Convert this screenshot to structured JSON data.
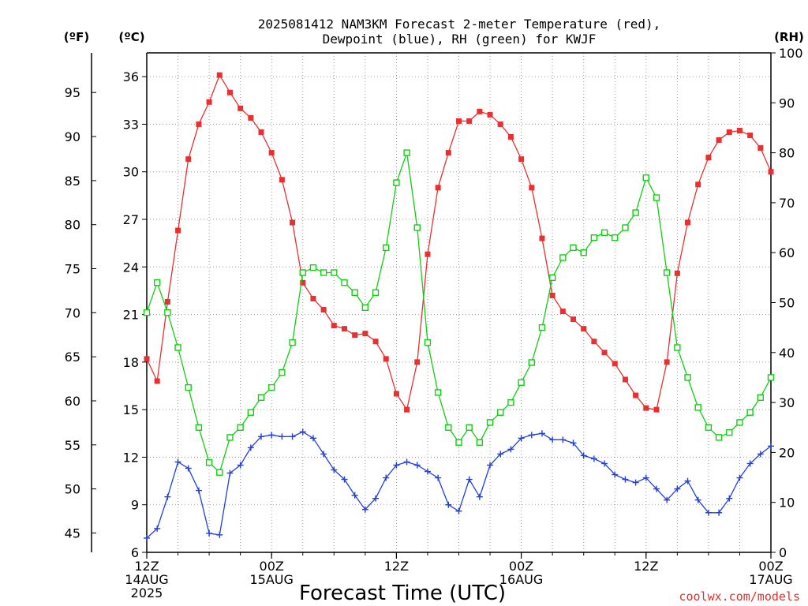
{
  "chart_data": {
    "type": "line",
    "title_line1": "2025081412 NAM3KM Forecast 2-meter Temperature (red),",
    "title_line2": "Dewpoint (blue), RH (green) for KWJF",
    "xlabel": "Forecast Time (UTC)",
    "left_unit_f": "(ºF)",
    "left_unit_c": "(ºC)",
    "right_unit": "(RH)",
    "credit": "coolwx.com/models",
    "xlim": [
      0,
      60
    ],
    "x_unit": "hours after 2025-08-14 12Z",
    "ylim_c": [
      6,
      37.5
    ],
    "ylim_rh": [
      0,
      100
    ],
    "yticks_c": [
      6,
      9,
      12,
      15,
      18,
      21,
      24,
      27,
      30,
      33,
      36
    ],
    "yticks_f": [
      45,
      50,
      55,
      60,
      65,
      70,
      75,
      80,
      85,
      90,
      95
    ],
    "yticks_rh": [
      0,
      10,
      20,
      30,
      40,
      50,
      60,
      70,
      80,
      90,
      100
    ],
    "x_ticks": [
      {
        "x": 0,
        "line1": "12Z",
        "line2": "14AUG",
        "line3": "2025"
      },
      {
        "x": 12,
        "line1": "00Z",
        "line2": "15AUG",
        "line3": ""
      },
      {
        "x": 24,
        "line1": "12Z",
        "line2": "",
        "line3": ""
      },
      {
        "x": 36,
        "line1": "00Z",
        "line2": "16AUG",
        "line3": ""
      },
      {
        "x": 48,
        "line1": "12Z",
        "line2": "",
        "line3": ""
      },
      {
        "x": 60,
        "line1": "00Z",
        "line2": "17AUG",
        "line3": ""
      }
    ],
    "grid": true,
    "series": [
      {
        "name": "Temperature",
        "units": "C",
        "color": "#e83030",
        "marker": "filled-square",
        "x": [
          0,
          1,
          2,
          3,
          4,
          5,
          6,
          7,
          8,
          9,
          10,
          11,
          12,
          13,
          14,
          15,
          16,
          17,
          18,
          19,
          20,
          21,
          22,
          23,
          24,
          25,
          26,
          27,
          28,
          29,
          30,
          31,
          32,
          33,
          34,
          35,
          36,
          37,
          38,
          39,
          40,
          41,
          42,
          43,
          44,
          45,
          46,
          47,
          48,
          49,
          50,
          51,
          52,
          53,
          54,
          55,
          56,
          57,
          58,
          59,
          60
        ],
        "values": [
          18.2,
          16.8,
          21.8,
          26.3,
          30.8,
          33.0,
          34.4,
          36.1,
          35.0,
          34.0,
          33.4,
          32.5,
          31.2,
          29.5,
          26.8,
          23.0,
          22.0,
          21.3,
          20.3,
          20.1,
          19.7,
          19.8,
          19.3,
          18.2,
          16.0,
          15.0,
          18.0,
          24.8,
          29.0,
          31.2,
          33.2,
          33.2,
          33.8,
          33.6,
          33.0,
          32.2,
          30.8,
          29.0,
          25.8,
          22.2,
          21.2,
          20.7,
          20.1,
          19.3,
          18.6,
          17.9,
          16.9,
          15.9,
          15.1,
          15.0,
          18.0,
          23.6,
          26.8,
          29.2,
          30.9,
          32.0,
          32.5,
          32.6,
          32.3,
          31.5,
          30.0
        ]
      },
      {
        "name": "Dewpoint",
        "units": "C",
        "color": "#2040e0",
        "marker": "plus",
        "x": [
          0,
          1,
          2,
          3,
          4,
          5,
          6,
          7,
          8,
          9,
          10,
          11,
          12,
          13,
          14,
          15,
          16,
          17,
          18,
          19,
          20,
          21,
          22,
          23,
          24,
          25,
          26,
          27,
          28,
          29,
          30,
          31,
          32,
          33,
          34,
          35,
          36,
          37,
          38,
          39,
          40,
          41,
          42,
          43,
          44,
          45,
          46,
          47,
          48,
          49,
          50,
          51,
          52,
          53,
          54,
          55,
          56,
          57,
          58,
          59,
          60
        ],
        "values": [
          6.9,
          7.5,
          9.5,
          11.7,
          11.3,
          9.9,
          7.2,
          7.1,
          11.0,
          11.5,
          12.6,
          13.3,
          13.4,
          13.3,
          13.3,
          13.6,
          13.2,
          12.2,
          11.2,
          10.6,
          9.6,
          8.7,
          9.4,
          10.7,
          11.5,
          11.7,
          11.5,
          11.1,
          10.7,
          9.0,
          8.6,
          10.6,
          9.5,
          11.5,
          12.2,
          12.5,
          13.2,
          13.4,
          13.5,
          13.1,
          13.1,
          12.9,
          12.1,
          11.9,
          11.6,
          10.9,
          10.6,
          10.4,
          10.7,
          10.0,
          9.3,
          10.0,
          10.5,
          9.3,
          8.5,
          8.5,
          9.4,
          10.7,
          11.6,
          12.2,
          12.7
        ]
      },
      {
        "name": "RH",
        "units": "%",
        "color": "#10d010",
        "marker": "open-square",
        "x": [
          0,
          1,
          2,
          3,
          4,
          5,
          6,
          7,
          8,
          9,
          10,
          11,
          12,
          13,
          14,
          15,
          16,
          17,
          18,
          19,
          20,
          21,
          22,
          23,
          24,
          25,
          26,
          27,
          28,
          29,
          30,
          31,
          32,
          33,
          34,
          35,
          36,
          37,
          38,
          39,
          40,
          41,
          42,
          43,
          44,
          45,
          46,
          47,
          48,
          49,
          50,
          51,
          52,
          53,
          54,
          55,
          56,
          57,
          58,
          59,
          60
        ],
        "values": [
          48,
          54,
          48,
          41,
          33,
          25,
          18,
          16,
          23,
          25,
          28,
          31,
          33,
          36,
          42,
          56,
          57,
          56,
          56,
          54,
          52,
          49,
          52,
          61,
          74,
          80,
          65,
          42,
          32,
          25,
          22,
          25,
          22,
          26,
          28,
          30,
          34,
          38,
          45,
          55,
          59,
          61,
          60,
          63,
          64,
          63,
          65,
          68,
          75,
          71,
          56,
          41,
          35,
          29,
          25,
          23,
          24,
          26,
          28,
          31,
          35
        ]
      }
    ]
  }
}
